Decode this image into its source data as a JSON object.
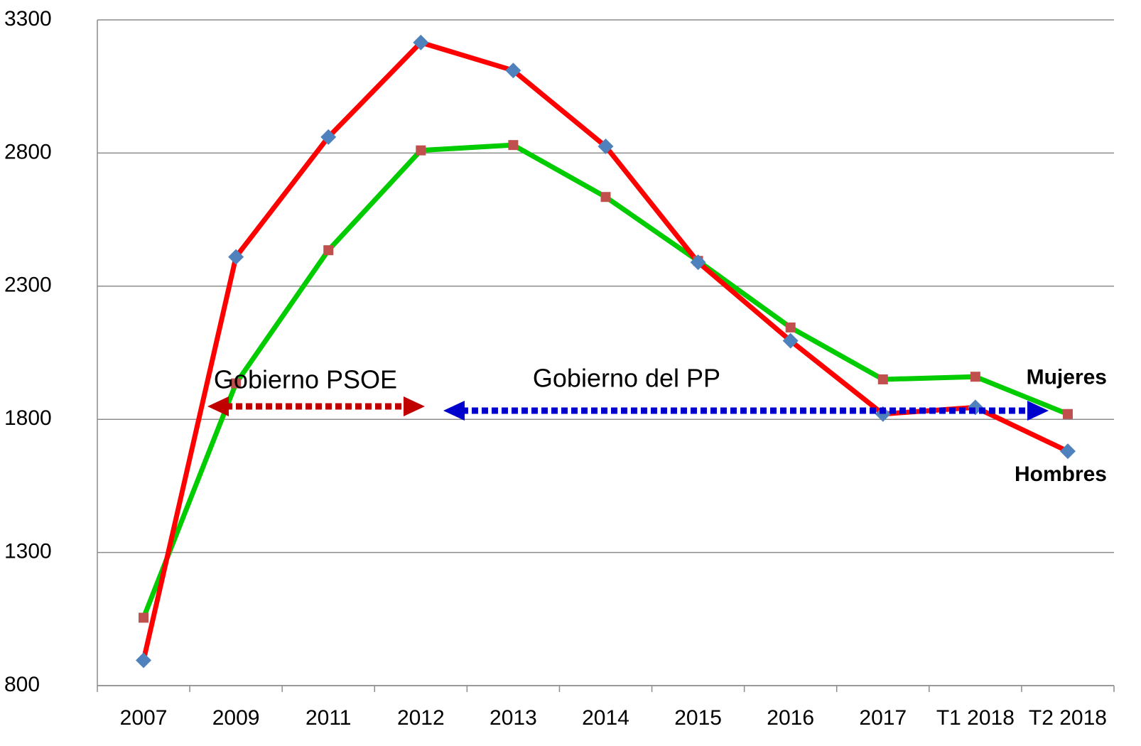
{
  "chart_data": {
    "type": "line",
    "annotations": [
      "Gobierno PSOE",
      "Gobierno del PP"
    ],
    "categories": [
      "2007",
      "2009",
      "2011",
      "2012",
      "2013",
      "2014",
      "2015",
      "2016",
      "2017",
      "T1 2018",
      "T2 2018"
    ],
    "series": [
      {
        "name": "Mujeres",
        "color": "#00cc00",
        "marker": "square",
        "marker_color": "#c0504d",
        "values": [
          1055,
          1935,
          2435,
          2810,
          2830,
          2635,
          2395,
          2145,
          1950,
          1960,
          1820
        ]
      },
      {
        "name": "Hombres",
        "color": "#ff0000",
        "marker": "diamond",
        "marker_color": "#4f81bd",
        "values": [
          895,
          2410,
          2860,
          3215,
          3110,
          2825,
          2390,
          2095,
          1820,
          1845,
          1680
        ]
      }
    ],
    "ylim": [
      800,
      3300
    ],
    "yticks": [
      800,
      1300,
      1800,
      2300,
      2800,
      3300
    ],
    "grid": true
  }
}
